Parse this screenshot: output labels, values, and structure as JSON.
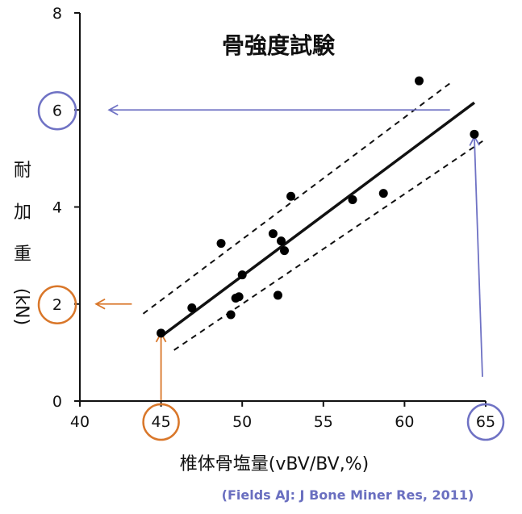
{
  "chart_data": {
    "type": "scatter",
    "title": "骨強度試験",
    "xlabel": "椎体骨塩量(vBV/BV,%)",
    "ylabel": [
      "耐",
      "加",
      "重",
      "(kN)"
    ],
    "xlim": [
      40,
      65
    ],
    "ylim": [
      0,
      8
    ],
    "x_ticks": [
      40,
      45,
      50,
      55,
      60,
      65
    ],
    "y_ticks": [
      0,
      2,
      4,
      6,
      8
    ],
    "highlighted_ticks": {
      "x": [
        {
          "value": 45,
          "color": "#d9772a"
        },
        {
          "value": 65,
          "color": "#6f72c4"
        }
      ],
      "y": [
        {
          "value": 2,
          "color": "#d9772a"
        },
        {
          "value": 6,
          "color": "#6f72c4"
        }
      ]
    },
    "points": [
      {
        "x": 45.0,
        "y": 1.4
      },
      {
        "x": 46.9,
        "y": 1.92
      },
      {
        "x": 48.7,
        "y": 3.25
      },
      {
        "x": 49.3,
        "y": 1.78
      },
      {
        "x": 49.6,
        "y": 2.12
      },
      {
        "x": 49.8,
        "y": 2.15
      },
      {
        "x": 50.0,
        "y": 2.6
      },
      {
        "x": 51.9,
        "y": 3.45
      },
      {
        "x": 52.2,
        "y": 2.18
      },
      {
        "x": 52.4,
        "y": 3.3
      },
      {
        "x": 52.6,
        "y": 3.1
      },
      {
        "x": 53.0,
        "y": 4.22
      },
      {
        "x": 56.8,
        "y": 4.15
      },
      {
        "x": 58.7,
        "y": 4.28
      },
      {
        "x": 60.9,
        "y": 6.6
      },
      {
        "x": 64.3,
        "y": 5.5
      }
    ],
    "regression_line": {
      "x": [
        45.0,
        64.3
      ],
      "y": [
        1.33,
        6.15
      ]
    },
    "confidence_band": {
      "upper": {
        "x": [
          43.9,
          63.0
        ],
        "y": [
          1.8,
          6.6
        ]
      },
      "lower": {
        "x": [
          45.8,
          65.0
        ],
        "y": [
          1.05,
          5.4
        ]
      }
    },
    "annotations": [
      {
        "type": "arrow",
        "color": "#d9772a",
        "from": {
          "x": 45,
          "y": 0
        },
        "to": {
          "x": 45,
          "y": 1.4
        }
      },
      {
        "type": "arrow",
        "color": "#d9772a",
        "from": {
          "x": 43.2,
          "y": 2
        },
        "to": {
          "x": 41.0,
          "y": 2
        }
      },
      {
        "type": "arrow",
        "color": "#6f72c4",
        "from": {
          "x": 64.8,
          "y": 0.5
        },
        "to": {
          "x": 64.3,
          "y": 5.45
        }
      },
      {
        "type": "arrow",
        "color": "#6f72c4",
        "from": {
          "x": 62.8,
          "y": 6
        },
        "to": {
          "x": 41.8,
          "y": 6
        }
      }
    ],
    "citation": "(Fields AJ: J Bone Miner Res, 2011)"
  }
}
